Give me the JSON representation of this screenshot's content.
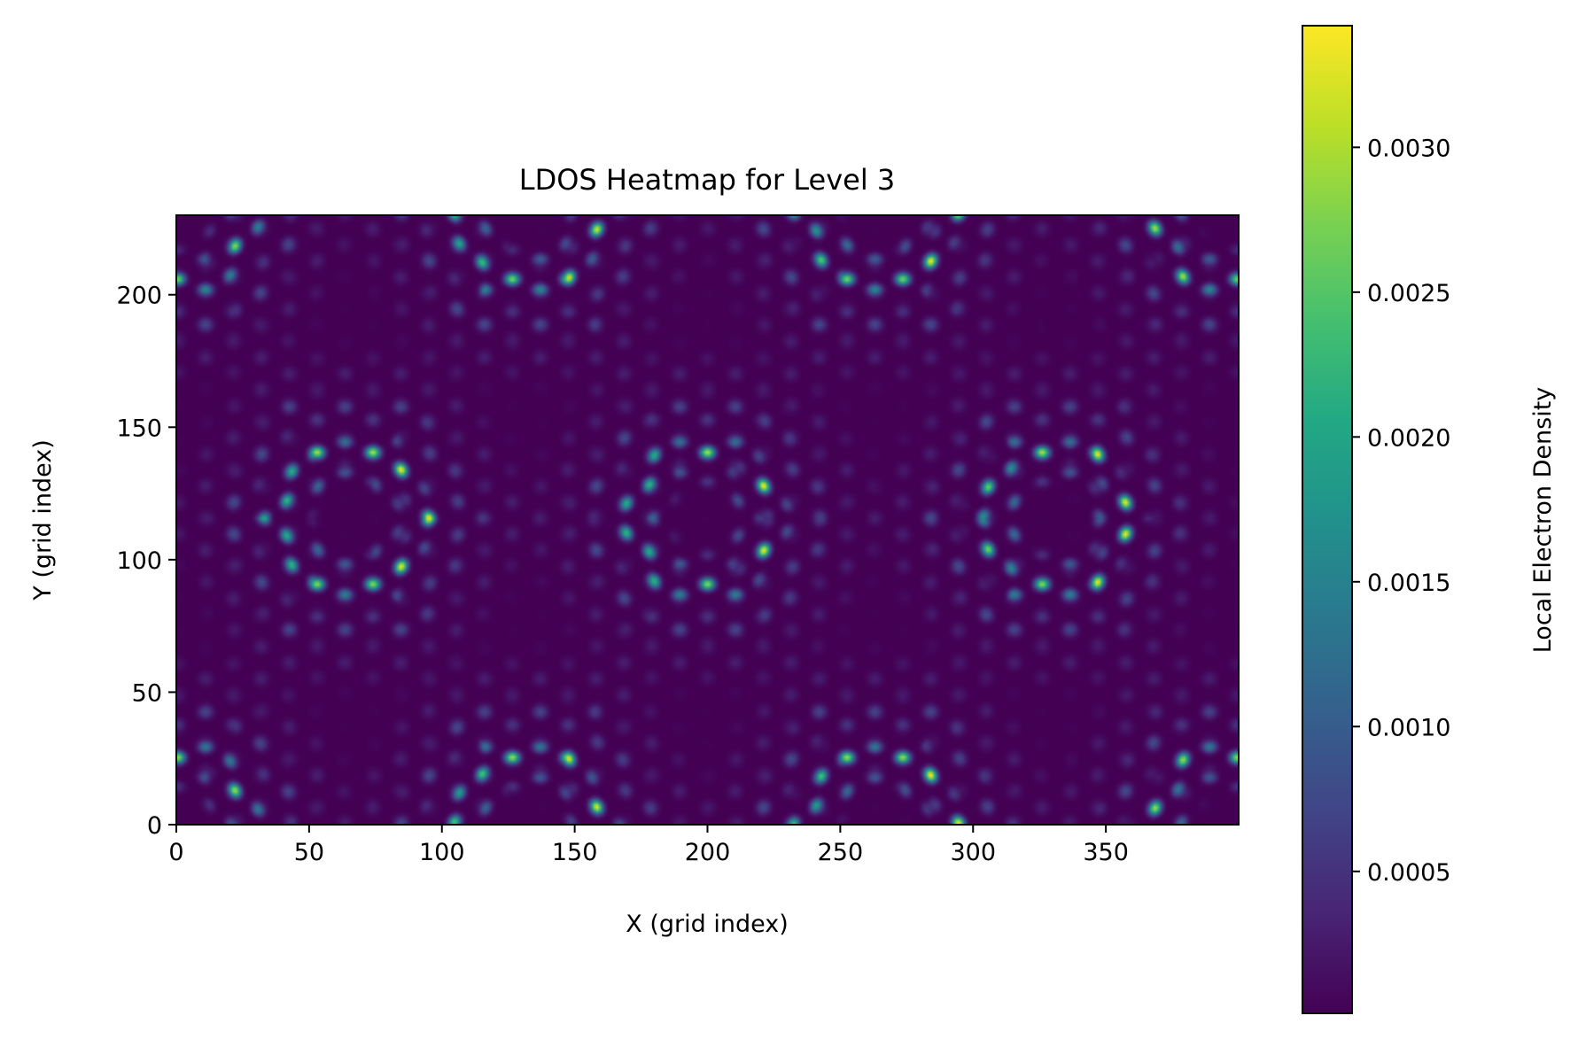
{
  "chart_data": {
    "type": "heatmap",
    "title": "LDOS Heatmap for Level 3",
    "xlabel": "X (grid index)",
    "ylabel": "Y (grid index)",
    "colorbar_label": "Local Electron Density",
    "colormap": "viridis",
    "xlim": [
      0,
      400
    ],
    "ylim": [
      0,
      230
    ],
    "x_ticks": [
      0,
      50,
      100,
      150,
      200,
      250,
      300,
      350
    ],
    "x_tick_labels": [
      "0",
      "50",
      "100",
      "150",
      "200",
      "250",
      "300",
      "350"
    ],
    "y_ticks": [
      0,
      50,
      100,
      150,
      200
    ],
    "y_tick_labels": [
      "0",
      "50",
      "100",
      "150",
      "200"
    ],
    "colorbar_range": [
      1e-05,
      0.00342
    ],
    "colorbar_ticks": [
      0.0005,
      0.001,
      0.0015,
      0.002,
      0.0025,
      0.003
    ],
    "colorbar_tick_labels": [
      "0.0005",
      "0.0010",
      "0.0015",
      "0.0020",
      "0.0025",
      "0.0030"
    ],
    "pattern": {
      "description_values": "hexagonal rings of high density",
      "ring_centers": [
        [
          65,
          115
        ],
        [
          198,
          115
        ],
        [
          330,
          115
        ],
        [
          0,
          0
        ],
        [
          132,
          0
        ],
        [
          264,
          0
        ],
        [
          396,
          0
        ],
        [
          0,
          230
        ],
        [
          132,
          230
        ],
        [
          264,
          230
        ],
        [
          396,
          230
        ]
      ],
      "ring_radius": 30,
      "peak_density": 0.0034
    },
    "grid": false
  }
}
